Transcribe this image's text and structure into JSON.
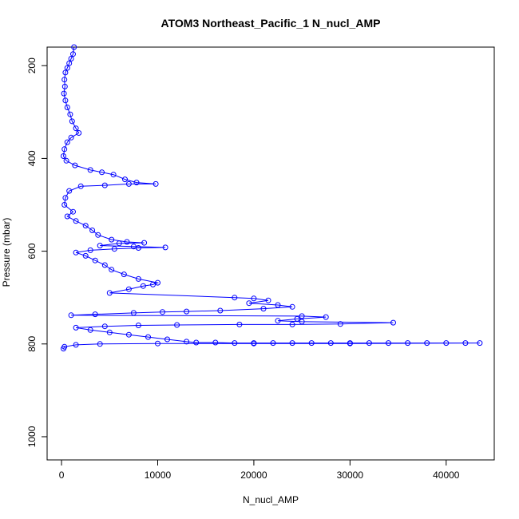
{
  "chart_data": {
    "type": "line",
    "title": "ATOM3 Northeast_Pacific_1 N_nucl_AMP",
    "xlabel": "N_nucl_AMP",
    "ylabel": "Pressure (mbar)",
    "xlim": [
      -1500,
      45000
    ],
    "ylim": [
      1050,
      160
    ],
    "y_reversed": true,
    "x_ticks": [
      0,
      10000,
      20000,
      30000,
      40000
    ],
    "x_tick_labels": [
      "0",
      "10000",
      "20000",
      "30000",
      "40000"
    ],
    "y_ticks": [
      200,
      400,
      600,
      800,
      1000
    ],
    "y_tick_labels": [
      "200",
      "400",
      "600",
      "800",
      "1000"
    ],
    "grid": false,
    "marker": "open-circle",
    "series_color": "#0000ff",
    "series": [
      {
        "points": [
          [
            1300,
            160
          ],
          [
            1200,
            175
          ],
          [
            1000,
            185
          ],
          [
            800,
            195
          ],
          [
            600,
            205
          ],
          [
            400,
            215
          ],
          [
            300,
            230
          ],
          [
            350,
            245
          ],
          [
            250,
            260
          ],
          [
            400,
            275
          ],
          [
            600,
            290
          ],
          [
            900,
            305
          ],
          [
            1100,
            320
          ],
          [
            1500,
            335
          ],
          [
            1800,
            345
          ],
          [
            1000,
            355
          ],
          [
            600,
            365
          ],
          [
            300,
            380
          ],
          [
            200,
            395
          ],
          [
            500,
            405
          ],
          [
            1400,
            415
          ],
          [
            3000,
            425
          ],
          [
            4200,
            430
          ],
          [
            5400,
            435
          ],
          [
            6600,
            445
          ],
          [
            7800,
            452
          ],
          [
            9800,
            455
          ],
          [
            7000,
            455
          ],
          [
            4500,
            458
          ],
          [
            2000,
            460
          ],
          [
            800,
            470
          ],
          [
            400,
            485
          ],
          [
            300,
            500
          ],
          [
            1200,
            515
          ],
          [
            600,
            525
          ],
          [
            1500,
            535
          ],
          [
            2500,
            545
          ],
          [
            3200,
            555
          ],
          [
            3800,
            565
          ],
          [
            5200,
            575
          ],
          [
            6800,
            580
          ],
          [
            8600,
            582
          ],
          [
            6000,
            583
          ],
          [
            4000,
            588
          ],
          [
            7500,
            590
          ],
          [
            10800,
            592
          ],
          [
            8000,
            593
          ],
          [
            5500,
            595
          ],
          [
            3000,
            598
          ],
          [
            1500,
            603
          ],
          [
            2500,
            610
          ],
          [
            3500,
            620
          ],
          [
            4500,
            630
          ],
          [
            5200,
            640
          ],
          [
            6500,
            650
          ],
          [
            8000,
            660
          ],
          [
            10000,
            668
          ],
          [
            9500,
            672
          ],
          [
            8500,
            675
          ],
          [
            7000,
            682
          ],
          [
            5000,
            690
          ],
          [
            18000,
            700
          ],
          [
            20000,
            702
          ],
          [
            21500,
            706
          ],
          [
            19500,
            712
          ],
          [
            22500,
            716
          ],
          [
            24000,
            720
          ],
          [
            21000,
            724
          ],
          [
            16500,
            728
          ],
          [
            13000,
            730
          ],
          [
            10500,
            731
          ],
          [
            7500,
            733
          ],
          [
            3500,
            736
          ],
          [
            1000,
            738
          ],
          [
            25000,
            740
          ],
          [
            27500,
            742
          ],
          [
            24500,
            746
          ],
          [
            22500,
            750
          ],
          [
            25000,
            752
          ],
          [
            34500,
            754
          ],
          [
            29000,
            757
          ],
          [
            24000,
            758
          ],
          [
            18500,
            758
          ],
          [
            12000,
            759
          ],
          [
            8000,
            760
          ],
          [
            4500,
            762
          ],
          [
            1500,
            765
          ],
          [
            3000,
            770
          ],
          [
            5000,
            775
          ],
          [
            7000,
            780
          ],
          [
            9000,
            785
          ],
          [
            11000,
            790
          ],
          [
            13000,
            795
          ],
          [
            14000,
            797
          ],
          [
            16000,
            797
          ],
          [
            18000,
            798
          ],
          [
            20000,
            798
          ],
          [
            22000,
            798
          ],
          [
            24000,
            798
          ],
          [
            26000,
            798
          ],
          [
            28000,
            798
          ],
          [
            30000,
            798
          ],
          [
            32000,
            798
          ],
          [
            34000,
            798
          ],
          [
            36000,
            798
          ],
          [
            38000,
            798
          ],
          [
            40000,
            798
          ],
          [
            42000,
            798
          ],
          [
            43500,
            798
          ],
          [
            30000,
            799
          ],
          [
            20000,
            799
          ],
          [
            10000,
            799
          ],
          [
            4000,
            800
          ],
          [
            1500,
            802
          ],
          [
            300,
            806
          ],
          [
            200,
            810
          ]
        ]
      }
    ]
  }
}
